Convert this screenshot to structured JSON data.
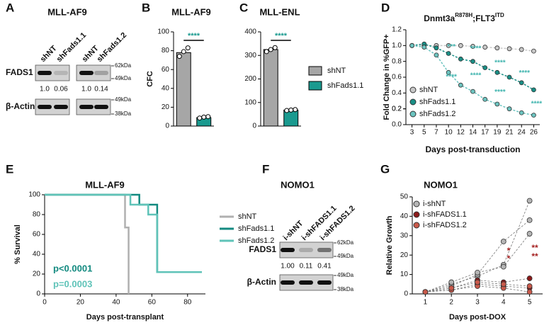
{
  "chart_data": [
    {
      "type": "bar",
      "panel_label": "B",
      "title": "MLL-AF9",
      "ylabel": "CFC",
      "values": [
        78,
        9
      ],
      "points": [
        [
          74,
          79,
          83
        ],
        [
          8.5,
          9.5,
          10
        ]
      ],
      "colors": [
        "#a6a6a6",
        "#1a9a8f"
      ],
      "ylim": [
        0,
        100
      ],
      "yticks": [
        0,
        20,
        40,
        60,
        80,
        100
      ],
      "significance": "****"
    },
    {
      "type": "bar",
      "panel_label": "C",
      "title": "MLL-ENL",
      "categories": [
        "shNT",
        "shFads1.1"
      ],
      "values": [
        325,
        68
      ],
      "points": [
        [
          316,
          325,
          333
        ],
        [
          66,
          68,
          70
        ]
      ],
      "colors": [
        "#a6a6a6",
        "#1a9a8f"
      ],
      "ylim": [
        0,
        400
      ],
      "yticks": [
        0,
        100,
        200,
        300,
        400
      ],
      "significance": "****"
    },
    {
      "type": "line",
      "panel_label": "D",
      "title": {
        "main1": "Dnmt3a",
        "sup1": "R878H",
        "main2": ";FLT3",
        "sup2": "ITD"
      },
      "ylabel": "Fold Change in %GFP+",
      "xlabel": "Days post-transduction",
      "categories": [
        "3",
        "5",
        "7",
        "10",
        "12",
        "14",
        "17",
        "19",
        "21",
        "24",
        "26"
      ],
      "series": [
        {
          "name": "shNT",
          "color": "#c8c8c8",
          "values": [
            1.0,
            1.0,
            1.0,
            1.0,
            1.0,
            0.99,
            0.98,
            0.97,
            0.96,
            0.95,
            0.93
          ]
        },
        {
          "name": "shFads1.1",
          "color": "#1a8f86",
          "values": [
            1.0,
            1.02,
            0.97,
            0.9,
            0.83,
            0.8,
            0.72,
            0.66,
            0.6,
            0.53,
            0.44
          ]
        },
        {
          "name": "shFads1.2",
          "color": "#6cc4c0",
          "values": [
            1.0,
            0.98,
            0.88,
            0.66,
            0.5,
            0.42,
            0.32,
            0.26,
            0.2,
            0.15,
            0.12
          ]
        }
      ],
      "ylim": [
        0,
        1.2
      ],
      "yticks": [
        {
          "value": 0,
          "label": "0.0"
        },
        0.2,
        0.4,
        0.6,
        0.8,
        {
          "value": 1,
          "label": "1.0"
        },
        0.2,
        1.2
      ],
      "annotations": [
        "***",
        "****",
        "****",
        "****",
        "****",
        "****",
        "****",
        "****"
      ]
    },
    {
      "type": "step",
      "panel_label": "E",
      "title": "MLL-AF9",
      "ylabel": "% Survival",
      "xlabel": "Days post-transplant",
      "series": [
        {
          "name": "shNT",
          "color": "#b0b0b0",
          "x": [
            0,
            45,
            47
          ],
          "values": [
            100,
            67,
            0
          ]
        },
        {
          "name": "shFads1.1",
          "color": "#138a80",
          "x": [
            0,
            53,
            63,
            88
          ],
          "values": [
            100,
            90,
            22,
            22
          ]
        },
        {
          "name": "shFads1.2",
          "color": "#5fc3b8",
          "x": [
            0,
            48,
            58,
            63,
            88
          ],
          "values": [
            100,
            90,
            80,
            22,
            22
          ]
        }
      ],
      "xlim": [
        0,
        90
      ],
      "xticks": [
        0,
        20,
        40,
        60,
        80
      ],
      "ylim": [
        0,
        100
      ],
      "yticks": [
        0,
        20,
        40,
        60,
        80,
        100
      ],
      "annotations": [
        "p<0.0001",
        "p=0.0003"
      ]
    },
    {
      "type": "replicate-line",
      "panel_label": "G",
      "title": "NOMO1",
      "ylabel": "Relative Growth",
      "xlabel": "Days post-DOX",
      "x": [
        1,
        2,
        3,
        4,
        5
      ],
      "series": [
        {
          "name": "i-shNT",
          "color": "#b5b5b5",
          "replicates": [
            [
              1,
              5,
              9,
              15,
              48
            ],
            [
              1,
              4,
              10,
              27,
              38
            ],
            [
              1,
              6,
              11,
              14,
              31
            ]
          ]
        },
        {
          "name": "i-shFADS1.1",
          "color": "#8b1a1a",
          "replicates": [
            [
              1,
              3,
              7,
              6,
              8
            ],
            [
              1,
              2,
              5,
              4,
              3
            ]
          ]
        },
        {
          "name": "i-shFADS1.2",
          "color": "#c9594a",
          "replicates": [
            [
              1,
              2,
              4,
              3,
              1
            ],
            [
              1,
              3,
              6,
              5,
              4
            ]
          ]
        }
      ],
      "xlim": [
        0.5,
        5.5
      ],
      "xticks": [
        1,
        2,
        3,
        4,
        5
      ],
      "ylim": [
        0,
        50
      ],
      "yticks": [
        0,
        10,
        20,
        30,
        40,
        50
      ],
      "annotations": [
        "**",
        "**",
        "*",
        "*"
      ]
    }
  ],
  "blots": [
    {
      "panel_label": "A",
      "title": "MLL-AF9",
      "lanes": [
        "shNT",
        "shFads1.1",
        "shNT",
        "shFads1.2"
      ],
      "rows": [
        {
          "name": "FADS1",
          "quant": [
            "1.0",
            "0.06",
            "1.0",
            "0.14"
          ]
        },
        {
          "name": "β-Actin"
        }
      ],
      "markers": [
        "62kDa",
        "49kDa",
        "49kDa",
        "38kDa"
      ]
    },
    {
      "panel_label": "F",
      "title": "NOMO1",
      "lanes": [
        "i-shNT",
        "i-shFADS1.1",
        "i-shFADS1.2"
      ],
      "rows": [
        {
          "name": "FADS1",
          "quant": [
            "1.00",
            "0.11",
            "0.41"
          ]
        },
        {
          "name": "β-Actin"
        }
      ],
      "markers": [
        "62kDa",
        "49kDa",
        "49kDa",
        "38kDa"
      ]
    }
  ]
}
